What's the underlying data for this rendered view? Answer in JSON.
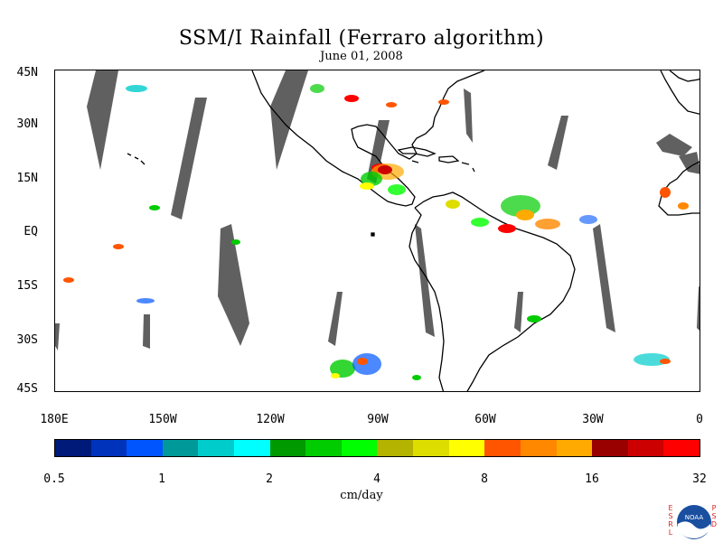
{
  "title": "SSM/I Rainfall (Ferraro algorithm)",
  "subtitle": "June 01, 2008",
  "lat_labels": [
    "45N",
    "30N",
    "15N",
    "EQ",
    "15S",
    "30S",
    "45S"
  ],
  "lon_labels": [
    "180E",
    "150W",
    "120W",
    "90W",
    "60W",
    "30W",
    "0"
  ],
  "colorbar": {
    "colors": [
      "#001a7a",
      "#0033bb",
      "#0055ff",
      "#009999",
      "#00cccc",
      "#00ffff",
      "#009900",
      "#00cc00",
      "#00ff00",
      "#b3b300",
      "#dddd00",
      "#ffff00",
      "#ff5500",
      "#ff8800",
      "#ffaa00",
      "#990000",
      "#cc0000",
      "#ff0000"
    ],
    "tick_labels": [
      "0.5",
      "1",
      "2",
      "4",
      "8",
      "16",
      "32"
    ]
  },
  "units": "cm/day",
  "logo": {
    "left_letters": [
      "E",
      "S",
      "R",
      "L"
    ],
    "right_letters": [
      "P",
      "S",
      "D"
    ],
    "badge_text": "NOAA"
  },
  "colors": {
    "swath_gap": "#606060",
    "coastline": "#000000"
  }
}
